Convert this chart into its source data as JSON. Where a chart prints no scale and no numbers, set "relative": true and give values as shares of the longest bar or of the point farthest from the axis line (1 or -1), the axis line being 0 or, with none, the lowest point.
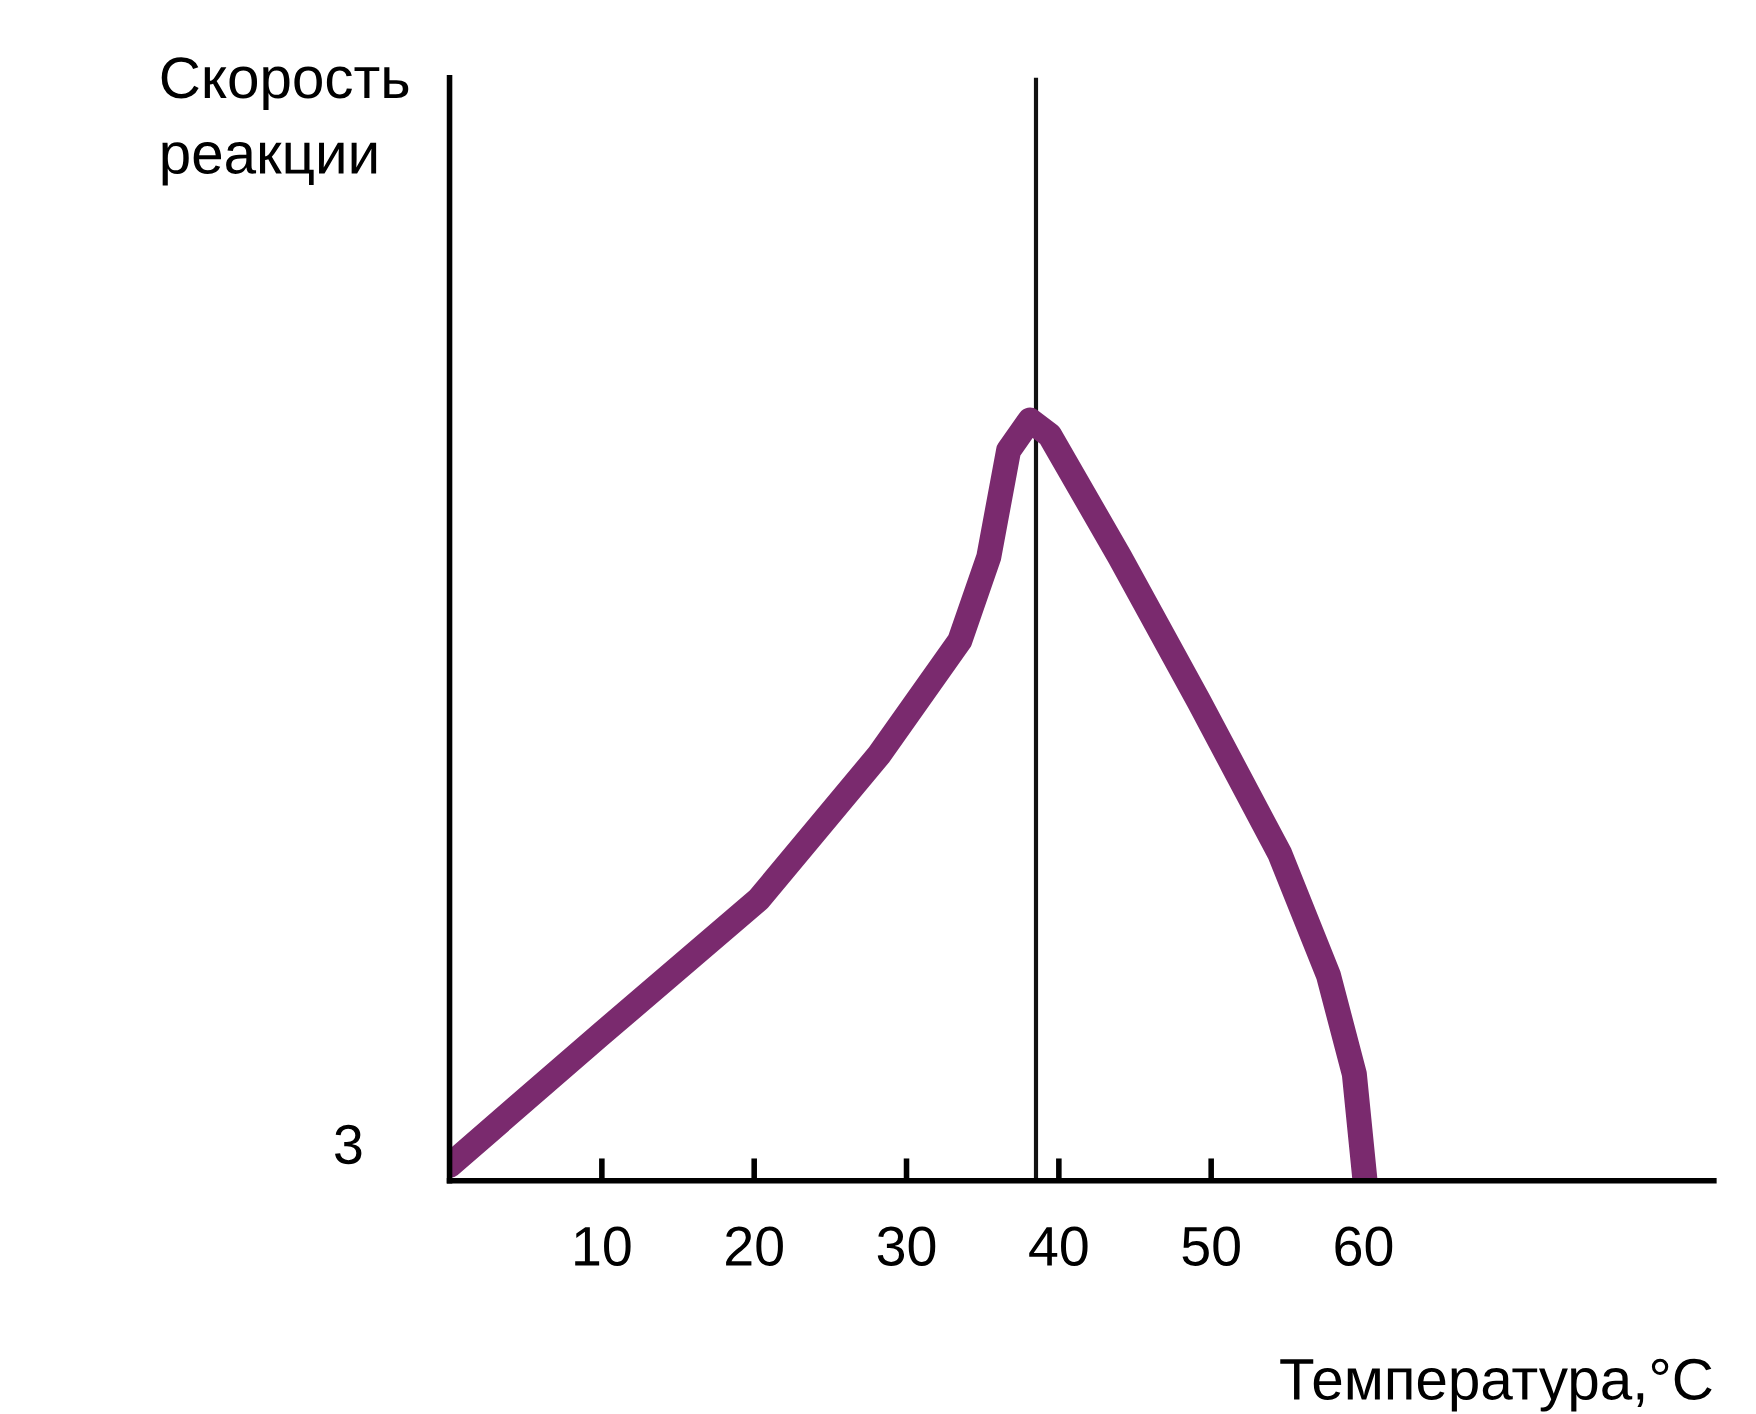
{
  "chart_data": {
    "type": "line",
    "relative": true,
    "xlabel": "Температура,°C",
    "ylabel": "Скорость\nреакции",
    "x": [
      0,
      9.8,
      20.3,
      28.2,
      33.5,
      35.4,
      36.7,
      38.1,
      39.4,
      44,
      49.2,
      54.5,
      57.7,
      59.4,
      60.1
    ],
    "series": [
      {
        "color": "#7a2a6e",
        "values": [
          0.02,
          0.19,
          0.37,
          0.56,
          0.71,
          0.82,
          0.96,
          1.0,
          0.98,
          0.82,
          0.63,
          0.43,
          0.27,
          0.14,
          0
        ]
      }
    ],
    "xlim": [
      0,
      83
    ],
    "xticks": [
      10,
      20,
      30,
      40,
      50,
      60
    ],
    "grid": false,
    "legend": false,
    "line_style": "solid",
    "ref_lines": [
      {
        "axis": "x",
        "value": 38.5,
        "color": "#111111"
      }
    ],
    "annotations": [
      "3"
    ]
  }
}
